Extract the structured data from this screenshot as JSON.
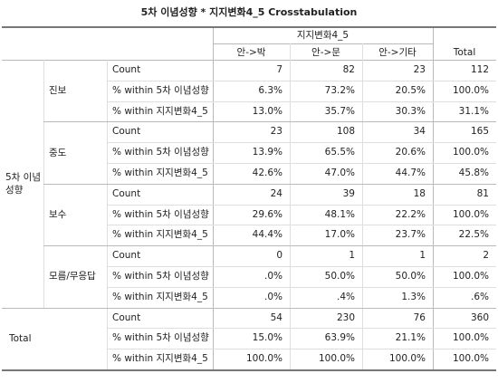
{
  "title": "5차 이념성향 * 지지변화4_5 Crosstabulation",
  "column_header": "지지변화4_5",
  "columns": [
    "안->박",
    "안->문",
    "안->기타",
    "Total"
  ],
  "row_header": "5차 이념성향",
  "groups": [
    {
      "label": "진보",
      "rows": [
        {
          "label": "Count",
          "values": [
            "7",
            "82",
            "23",
            "112"
          ]
        },
        {
          "label": "% within 5차 이념성향",
          "values": [
            "6.3%",
            "73.2%",
            "20.5%",
            "100.0%"
          ]
        },
        {
          "label": "% within 지지변화4_5",
          "values": [
            "13.0%",
            "35.7%",
            "30.3%",
            "31.1%"
          ]
        }
      ]
    },
    {
      "label": "중도",
      "rows": [
        {
          "label": "Count",
          "values": [
            "23",
            "108",
            "34",
            "165"
          ]
        },
        {
          "label": "% within 5차 이념성향",
          "values": [
            "13.9%",
            "65.5%",
            "20.6%",
            "100.0%"
          ]
        },
        {
          "label": "% within 지지변화4_5",
          "values": [
            "42.6%",
            "47.0%",
            "44.7%",
            "45.8%"
          ]
        }
      ]
    },
    {
      "label": "보수",
      "rows": [
        {
          "label": "Count",
          "values": [
            "24",
            "39",
            "18",
            "81"
          ]
        },
        {
          "label": "% within 5차 이념성향",
          "values": [
            "29.6%",
            "48.1%",
            "22.2%",
            "100.0%"
          ]
        },
        {
          "label": "% within 지지변화4_5",
          "values": [
            "44.4%",
            "17.0%",
            "23.7%",
            "22.5%"
          ]
        }
      ]
    },
    {
      "label": "모름/무응답",
      "rows": [
        {
          "label": "Count",
          "values": [
            "0",
            "1",
            "1",
            "2"
          ]
        },
        {
          "label": "% within 5차 이념성향",
          "values": [
            ".0%",
            "50.0%",
            "50.0%",
            "100.0%"
          ]
        },
        {
          "label": "% within 지지변화4_5",
          "values": [
            ".0%",
            ".4%",
            "1.3%",
            ".6%"
          ]
        }
      ]
    }
  ],
  "total": {
    "label": "Total",
    "rows": [
      {
        "label": "Count",
        "values": [
          "54",
          "230",
          "76",
          "360"
        ]
      },
      {
        "label": "% within 5차 이념성향",
        "values": [
          "15.0%",
          "63.9%",
          "21.1%",
          "100.0%"
        ]
      },
      {
        "label": "% within 지지변화4_5",
        "values": [
          "100.0%",
          "100.0%",
          "100.0%",
          "100.0%"
        ]
      }
    ]
  }
}
